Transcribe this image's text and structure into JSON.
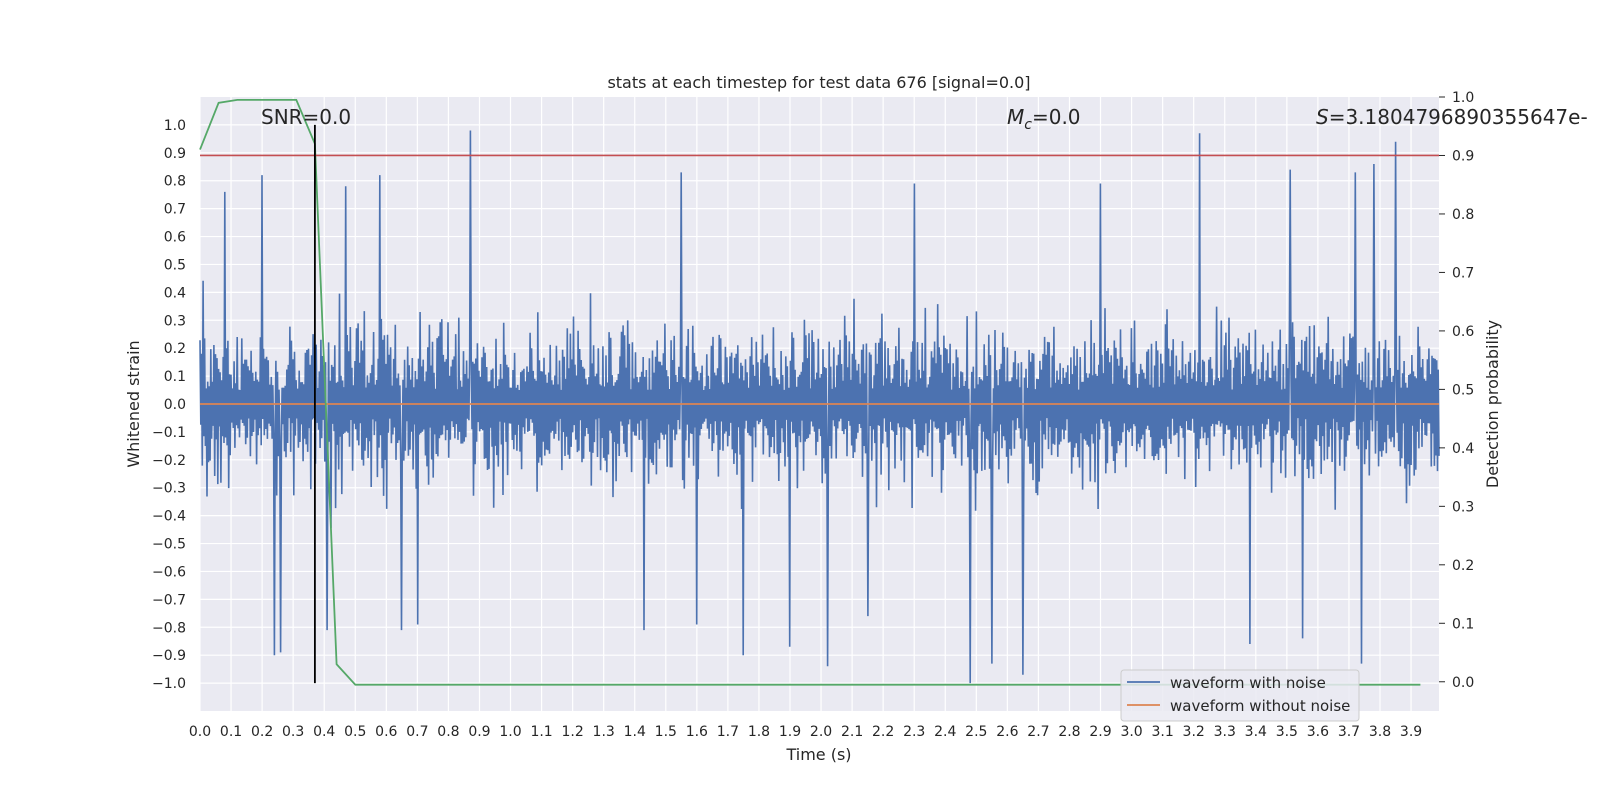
{
  "chart_data": {
    "type": "line",
    "title": "stats at each timestep for test data 676 [signal=0.0]",
    "xlabel": "Time (s)",
    "ylabel": "Whitened strain",
    "ylabel_right": "Detection probability",
    "xlim": [
      0.0,
      3.99
    ],
    "ylim": [
      -1.1,
      1.1
    ],
    "ylim_right": [
      -0.05,
      1.0
    ],
    "xticks": [
      "0.0",
      "0.1",
      "0.2",
      "0.3",
      "0.4",
      "0.5",
      "0.6",
      "0.7",
      "0.8",
      "0.9",
      "1.0",
      "1.1",
      "1.2",
      "1.3",
      "1.4",
      "1.5",
      "1.6",
      "1.7",
      "1.8",
      "1.9",
      "2.0",
      "2.1",
      "2.2",
      "2.3",
      "2.4",
      "2.5",
      "2.6",
      "2.7",
      "2.8",
      "2.9",
      "3.0",
      "3.1",
      "3.2",
      "3.3",
      "3.4",
      "3.5",
      "3.6",
      "3.7",
      "3.8",
      "3.9"
    ],
    "yticks": [
      "1.0",
      "0.9",
      "0.8",
      "0.7",
      "0.6",
      "0.5",
      "0.4",
      "0.3",
      "0.2",
      "0.1",
      "0.0",
      "−0.1",
      "−0.2",
      "−0.3",
      "−0.4",
      "−0.5",
      "−0.6",
      "−0.7",
      "−0.8",
      "−0.9",
      "−1.0"
    ],
    "yticks_right": [
      "1.0",
      "0.9",
      "0.8",
      "0.7",
      "0.6",
      "0.5",
      "0.4",
      "0.3",
      "0.2",
      "0.1",
      "0.0"
    ],
    "grid": true,
    "legend_position": "bottom-right",
    "annotations": {
      "snr": "SNR=0.0",
      "mc_symbol": "M",
      "mc_sub": "c",
      "mc_value": "=0.0",
      "s_symbol": "S",
      "s_value": "=3.1804796890355647e-"
    },
    "series": [
      {
        "name": "waveform with noise",
        "color": "#4c72b0",
        "note": "dense noise series, amplitude envelope approx ±0.5 with spikes",
        "spikes_pos": [
          [
            0.2,
            0.82
          ],
          [
            0.87,
            0.98
          ],
          [
            1.55,
            0.83
          ],
          [
            2.3,
            0.79
          ],
          [
            2.9,
            0.79
          ],
          [
            3.22,
            0.97
          ],
          [
            3.51,
            0.84
          ],
          [
            3.72,
            0.83
          ],
          [
            3.78,
            0.86
          ],
          [
            3.85,
            0.94
          ],
          [
            0.58,
            0.82
          ],
          [
            0.47,
            0.78
          ],
          [
            0.08,
            0.76
          ]
        ],
        "spikes_neg": [
          [
            0.24,
            -0.9
          ],
          [
            0.26,
            -0.89
          ],
          [
            0.41,
            -0.81
          ],
          [
            0.65,
            -0.81
          ],
          [
            1.43,
            -0.81
          ],
          [
            1.75,
            -0.9
          ],
          [
            1.9,
            -0.87
          ],
          [
            2.02,
            -0.94
          ],
          [
            2.48,
            -1.0
          ],
          [
            2.55,
            -0.93
          ],
          [
            2.65,
            -0.97
          ],
          [
            3.38,
            -0.86
          ],
          [
            3.55,
            -0.84
          ],
          [
            3.74,
            -0.93
          ],
          [
            0.7,
            -0.79
          ],
          [
            1.6,
            -0.79
          ],
          [
            2.15,
            -0.76
          ]
        ]
      },
      {
        "name": "waveform without noise",
        "color": "#dd8452",
        "x": [
          0.0,
          3.99
        ],
        "y": [
          0.0,
          0.0
        ]
      },
      {
        "name": "detection probability",
        "axis": "right",
        "color": "#55a868",
        "x": [
          0.0,
          0.06,
          0.12,
          0.18,
          0.24,
          0.31,
          0.37,
          0.44,
          0.5,
          0.56,
          0.62,
          3.93
        ],
        "y": [
          0.91,
          0.99,
          0.995,
          0.995,
          0.995,
          0.995,
          0.92,
          0.03,
          -0.005,
          -0.005,
          -0.005,
          -0.005
        ]
      },
      {
        "name": "threshold",
        "axis": "right",
        "color": "#c44e52",
        "value": 0.9
      },
      {
        "name": "detection time",
        "color": "#000000",
        "x": 0.37
      }
    ]
  }
}
